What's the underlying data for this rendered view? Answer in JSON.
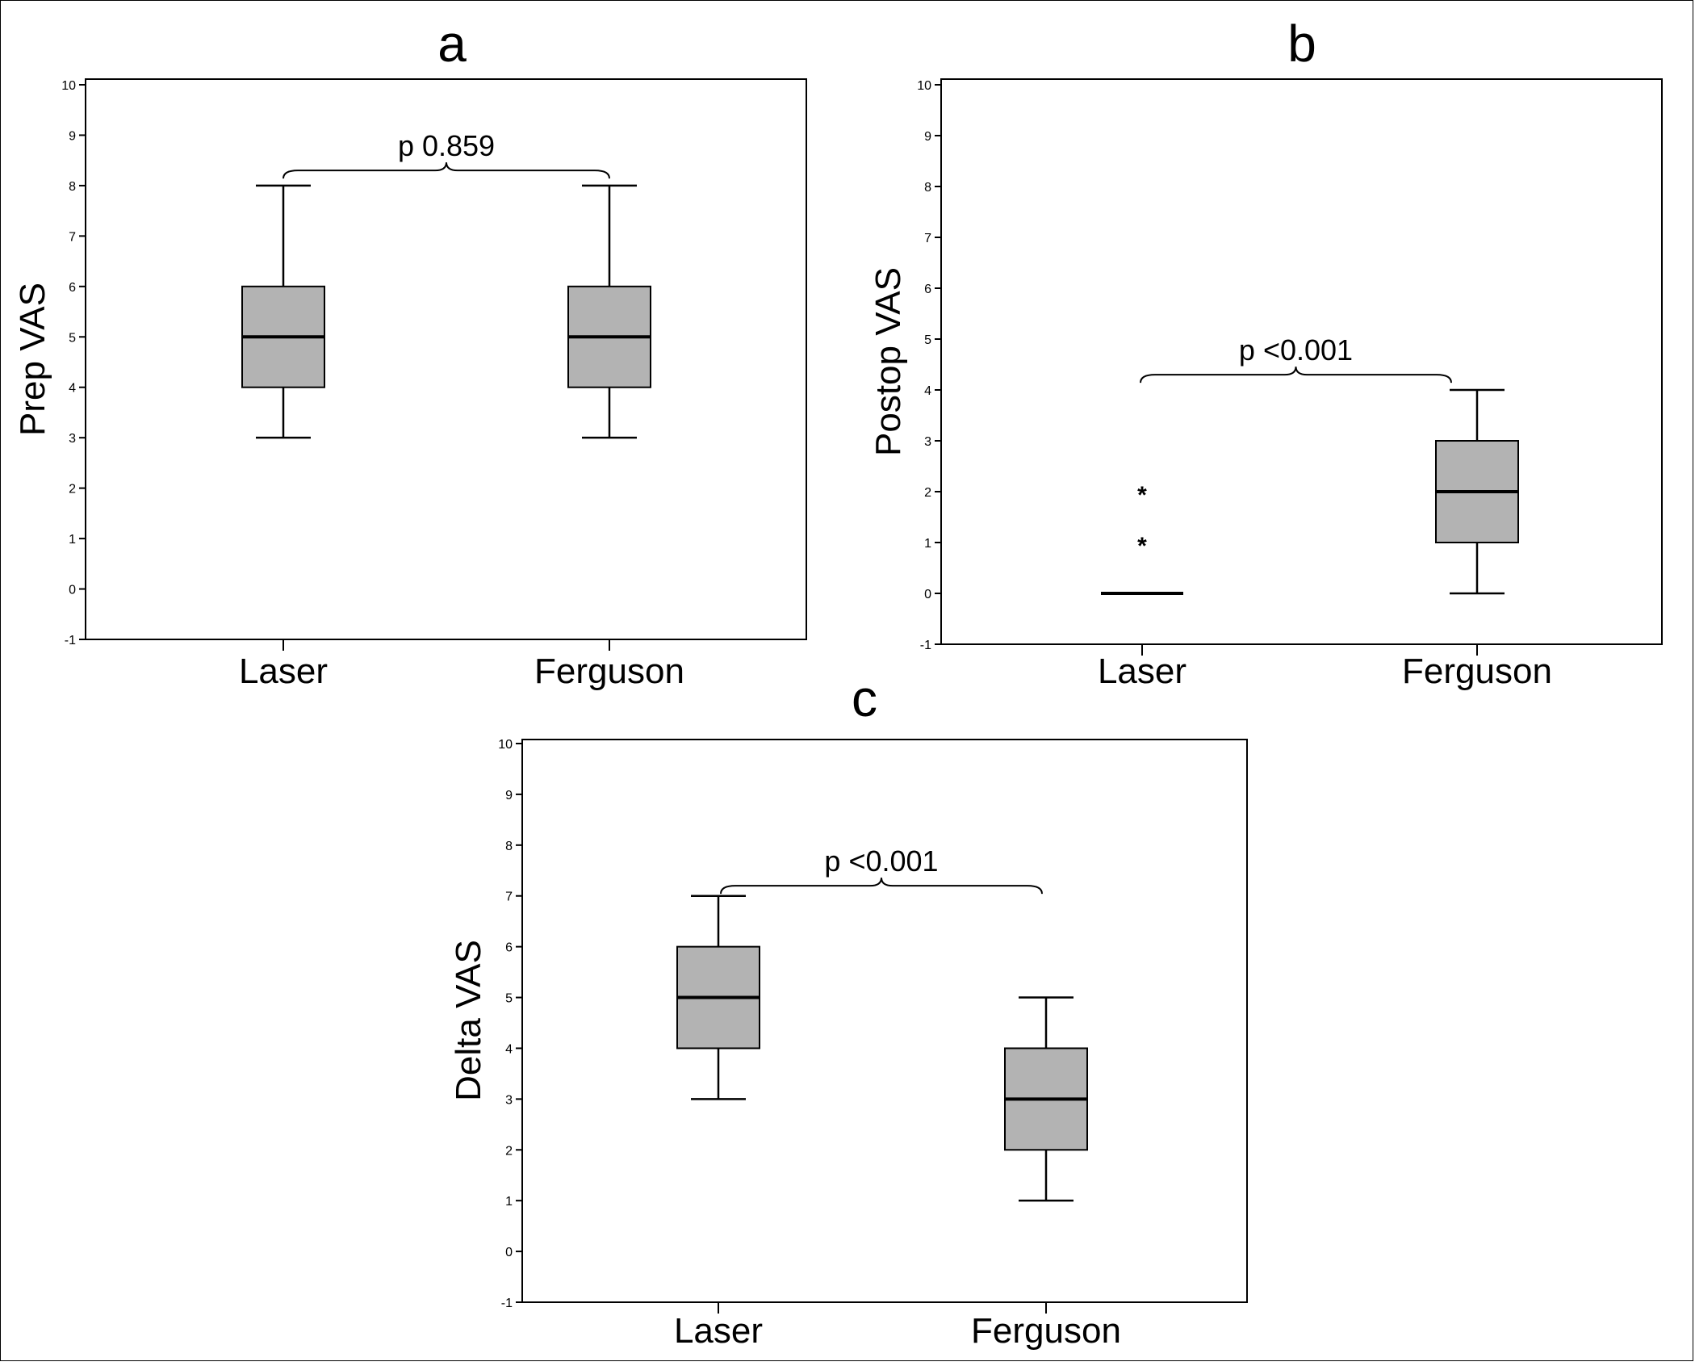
{
  "chart_data": [
    {
      "type": "box",
      "panel_label": "a",
      "ylabel": "Prep VAS",
      "categories": [
        "Laser",
        "Ferguson"
      ],
      "ylim": [
        -1,
        10
      ],
      "yticks": [
        -1,
        0,
        1,
        2,
        3,
        4,
        5,
        6,
        7,
        8,
        9,
        10
      ],
      "boxes": [
        {
          "category": "Laser",
          "min": 3,
          "q1": 4,
          "median": 5,
          "q3": 6,
          "max": 8,
          "outliers": []
        },
        {
          "category": "Ferguson",
          "min": 3,
          "q1": 4,
          "median": 5,
          "q3": 6,
          "max": 8,
          "outliers": []
        }
      ],
      "annotation": {
        "text": "p 0.859",
        "y": 8.3
      }
    },
    {
      "type": "box",
      "panel_label": "b",
      "ylabel": "Postop VAS",
      "categories": [
        "Laser",
        "Ferguson"
      ],
      "ylim": [
        -1,
        10
      ],
      "yticks": [
        -1,
        0,
        1,
        2,
        3,
        4,
        5,
        6,
        7,
        8,
        9,
        10
      ],
      "boxes": [
        {
          "category": "Laser",
          "min": 0,
          "q1": 0,
          "median": 0,
          "q3": 0,
          "max": 0,
          "outliers": [
            1,
            2
          ]
        },
        {
          "category": "Ferguson",
          "min": 0,
          "q1": 1,
          "median": 2,
          "q3": 3,
          "max": 4,
          "outliers": []
        }
      ],
      "annotation": {
        "text": "p <0.001",
        "y": 4.3
      }
    },
    {
      "type": "box",
      "panel_label": "c",
      "ylabel": "Delta VAS",
      "categories": [
        "Laser",
        "Ferguson"
      ],
      "ylim": [
        -1,
        10
      ],
      "yticks": [
        -1,
        0,
        1,
        2,
        3,
        4,
        5,
        6,
        7,
        8,
        9,
        10
      ],
      "boxes": [
        {
          "category": "Laser",
          "min": 3,
          "q1": 4,
          "median": 5,
          "q3": 6,
          "max": 7,
          "outliers": []
        },
        {
          "category": "Ferguson",
          "min": 1,
          "q1": 2,
          "median": 3,
          "q3": 4,
          "max": 5,
          "outliers": []
        }
      ],
      "annotation": {
        "text": "p <0.001",
        "y": 7.2
      }
    }
  ],
  "colors": {
    "box_fill": "#b3b3b3",
    "line": "#000000",
    "background": "#ffffff"
  }
}
